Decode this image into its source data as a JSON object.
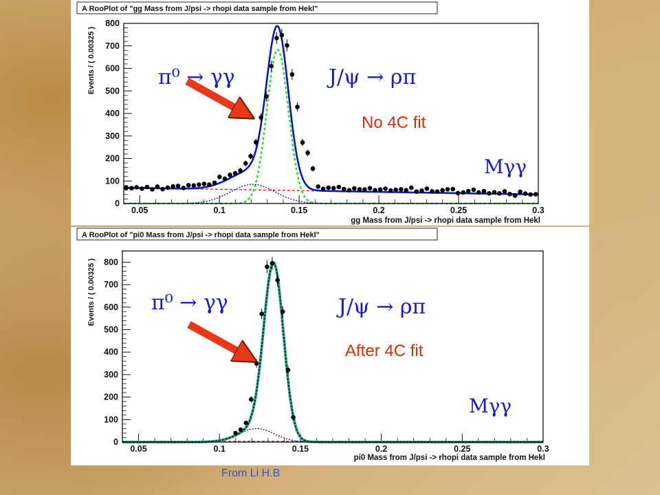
{
  "footer": {
    "credit": "From Li H.B"
  },
  "colors": {
    "total": "#0a14c8",
    "signal": "#33dd33",
    "background": "#e41a1a",
    "tail": "#1a1ac0",
    "overlay_dark": "#103030",
    "overlay_teal": "#30b090",
    "annotation_blue": "#1a1acc",
    "annotation_red": "#e02a00",
    "arrow": "#e83818"
  },
  "chart_data": [
    {
      "type": "scatter",
      "title": "A RooPlot of \"gg Mass from J/psi -> rhopi data sample from Hekl\"",
      "xlabel": "gg Mass from J/psi -> rhopi data sample from Hekl",
      "ylabel": "Events / ( 0.00325 )",
      "xlim": [
        0.04,
        0.3
      ],
      "ylim": [
        0,
        800
      ],
      "xticks": [
        0.05,
        0.1,
        0.15,
        0.2,
        0.25,
        0.3
      ],
      "xtick_labels": [
        "0.05",
        "0.1",
        "0.15",
        "0.2",
        "0.25",
        "0.3"
      ],
      "yticks": [
        0,
        100,
        200,
        300,
        400,
        500,
        600,
        700,
        800
      ],
      "ytick_labels": [
        "0",
        "100",
        "200",
        "300",
        "400",
        "500",
        "600",
        "700",
        "800"
      ],
      "annotations": {
        "decay_pi0": "π⁰ → γγ",
        "decay_jpsi": "J/ψ → ρπ",
        "fit_label": "No 4C fit",
        "mass_label": "Mγγ"
      },
      "x": [
        0.0416,
        0.0449,
        0.0481,
        0.0514,
        0.0546,
        0.0579,
        0.0611,
        0.0644,
        0.0676,
        0.0709,
        0.0741,
        0.0774,
        0.0806,
        0.0839,
        0.0871,
        0.0904,
        0.0936,
        0.0969,
        0.1001,
        0.1034,
        0.1066,
        0.1099,
        0.1131,
        0.1164,
        0.1196,
        0.1229,
        0.1261,
        0.1294,
        0.1326,
        0.1359,
        0.1391,
        0.1424,
        0.1456,
        0.1489,
        0.1521,
        0.1554,
        0.1586,
        0.1619,
        0.1651,
        0.1684,
        0.1716,
        0.1749,
        0.1781,
        0.1814,
        0.1846,
        0.1879,
        0.1911,
        0.1944,
        0.1976,
        0.2009,
        0.2041,
        0.2074,
        0.2106,
        0.2139,
        0.2171,
        0.2204,
        0.2236,
        0.2269,
        0.2301,
        0.2334,
        0.2366,
        0.2399,
        0.2431,
        0.2464,
        0.2496,
        0.2529,
        0.2561,
        0.2594,
        0.2626,
        0.2659,
        0.2691,
        0.2724,
        0.2756,
        0.2789,
        0.2821,
        0.2854,
        0.2886,
        0.2919,
        0.2951,
        0.2984
      ],
      "y": [
        70,
        68,
        72,
        66,
        73,
        63,
        75,
        64,
        71,
        76,
        78,
        69,
        81,
        80,
        84,
        87,
        84,
        92,
        118,
        110,
        127,
        134,
        146,
        178,
        210,
        272,
        382,
        475,
        610,
        735,
        748,
        702,
        573,
        429,
        271,
        225,
        155,
        75,
        65,
        70,
        68,
        73,
        64,
        59,
        67,
        63,
        62,
        68,
        59,
        62,
        66,
        58,
        61,
        63,
        59,
        70,
        53,
        57,
        66,
        54,
        53,
        59,
        63,
        64,
        46,
        49,
        55,
        61,
        49,
        55,
        45,
        50,
        45,
        54,
        42,
        35,
        52,
        44,
        40,
        41
      ],
      "series": [
        {
          "name": "",
          "mean": 0.1365,
          "sigma": 0.0068,
          "amp": 683,
          "tail_mean": 0.121,
          "tail_sigma": 0.014,
          "tail_amp": 85,
          "bg_at_min": 70,
          "bg_at_max": 40
        }
      ]
    },
    {
      "type": "scatter",
      "title": "A RooPlot of \"pi0 Mass from J/psi -> rhopi data sample from Hekl\"",
      "xlabel": "pi0 Mass from J/psi -> rhopi data sample from Hekl",
      "ylabel": "Events / ( 0.00325 )",
      "xlim": [
        0.04,
        0.3
      ],
      "ylim": [
        0,
        850
      ],
      "xticks": [
        0.05,
        0.1,
        0.15,
        0.2,
        0.25,
        0.3
      ],
      "xtick_labels": [
        "0.05",
        "0.1",
        "0.15",
        "0.2",
        "0.25",
        "0.3"
      ],
      "yticks": [
        0,
        100,
        200,
        300,
        400,
        500,
        600,
        700,
        800
      ],
      "ytick_labels": [
        "0",
        "100",
        "200",
        "300",
        "400",
        "500",
        "600",
        "700",
        "800"
      ],
      "annotations": {
        "decay_pi0": "π⁰ → γγ",
        "decay_jpsi": "J/ψ → ρπ",
        "fit_label": "After 4C fit",
        "mass_label": "Mγγ"
      },
      "x": [
        0.1099,
        0.1131,
        0.1164,
        0.1196,
        0.1229,
        0.1261,
        0.1294,
        0.1326,
        0.1359,
        0.1391,
        0.1424,
        0.1456
      ],
      "y": [
        40,
        55,
        85,
        190,
        350,
        570,
        780,
        795,
        720,
        580,
        320,
        110
      ],
      "series": [
        {
          "name": "",
          "mean": 0.1335,
          "sigma": 0.0061,
          "amp": 760,
          "tail_mean": 0.123,
          "tail_sigma": 0.011,
          "tail_amp": 60,
          "bg_at_min": 0,
          "bg_at_max": 0
        }
      ]
    }
  ]
}
